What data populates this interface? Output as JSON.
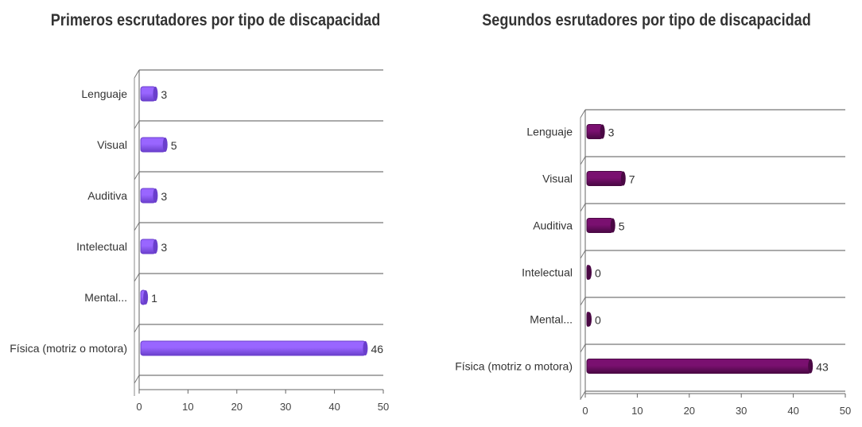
{
  "chart_data": [
    {
      "type": "bar",
      "orientation": "horizontal",
      "title": "Primeros escrutadores por tipo de discapacidad",
      "categories": [
        "Lenguaje",
        "Visual",
        "Auditiva",
        "Intelectual",
        "Mental...",
        "Física  (motriz o motora)"
      ],
      "values": [
        3,
        5,
        3,
        3,
        1,
        46
      ],
      "xlim": [
        0,
        50
      ],
      "xticks": [
        "0",
        "10",
        "20",
        "30",
        "40",
        "50"
      ],
      "bar_color": "#9966ff",
      "bar_color_dark": "#6a3fcc",
      "legend": "none",
      "grid": true
    },
    {
      "type": "bar",
      "orientation": "horizontal",
      "title": "Segundos esrutadores por tipo de discapacidad",
      "categories": [
        "Lenguaje",
        "Visual",
        "Auditiva",
        "Intelectual",
        "Mental...",
        "Física  (motriz o motora)"
      ],
      "values": [
        3,
        7,
        5,
        0,
        0,
        43
      ],
      "xlim": [
        0,
        50
      ],
      "xticks": [
        "0",
        "10",
        "20",
        "30",
        "40",
        "50"
      ],
      "bar_color": "#7a1070",
      "bar_color_dark": "#4a0844",
      "legend": "none",
      "grid": true
    }
  ]
}
